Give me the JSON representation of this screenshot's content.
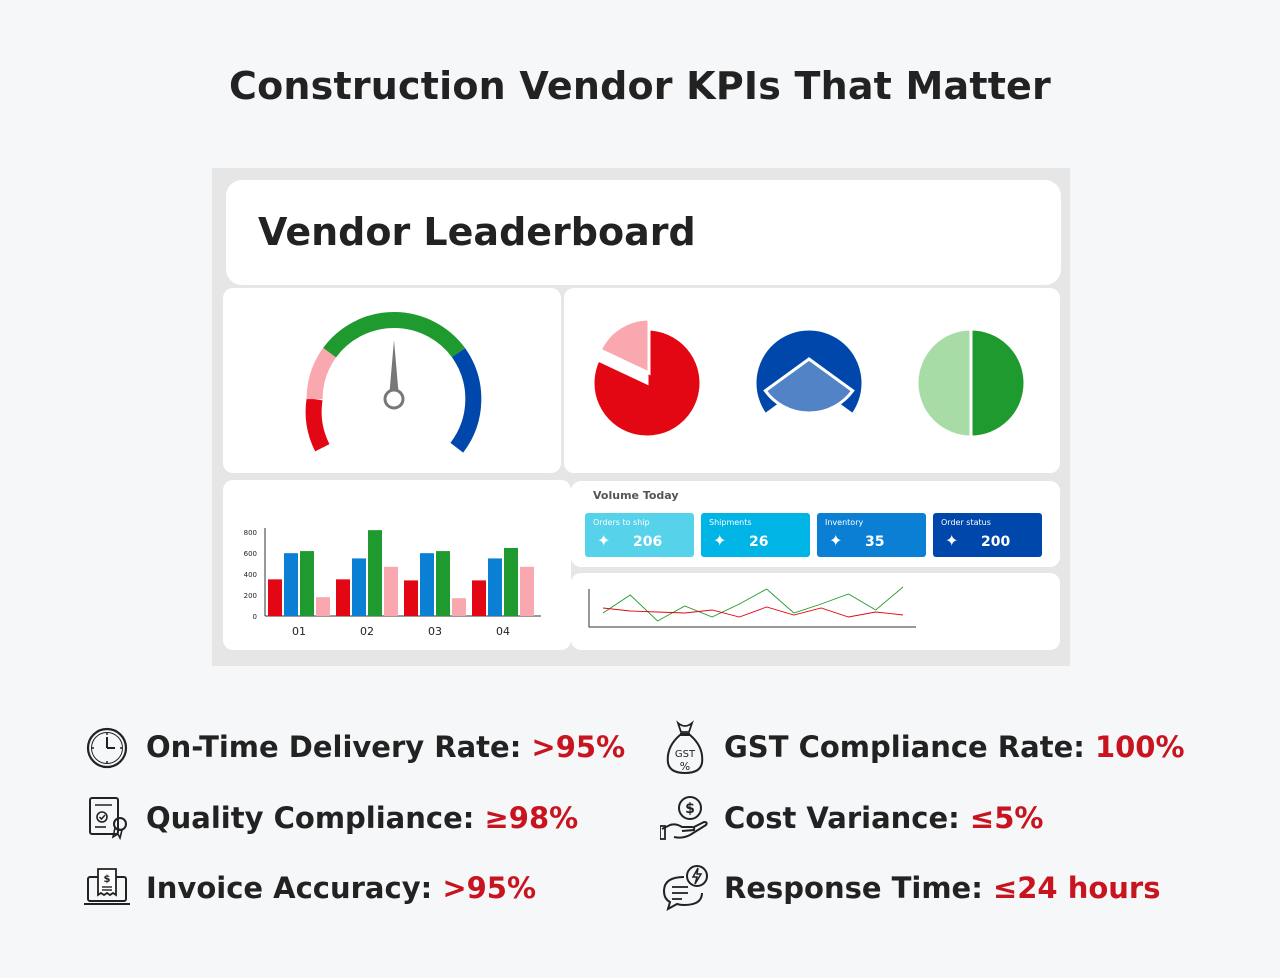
{
  "page": {
    "title": "Construction Vendor KPIs That Matter"
  },
  "dashboard": {
    "title": "Vendor Leaderboard",
    "gauge": {
      "level": 0.5
    },
    "pies": [
      {
        "name": "pie-red",
        "slices": [
          {
            "value": 0.82,
            "color": "#e30613"
          },
          {
            "value": 0.18,
            "color": "#f9a8b0"
          }
        ]
      },
      {
        "name": "pie-blue",
        "slices": [
          {
            "value": 0.7,
            "color": "#0047ab"
          },
          {
            "value": 0.3,
            "color": "#5283c7"
          }
        ]
      },
      {
        "name": "pie-green",
        "slices": [
          {
            "value": 0.5,
            "color": "#1f9a2e"
          },
          {
            "value": 0.5,
            "color": "#a8dca6"
          }
        ]
      }
    ],
    "volume": {
      "title": "Volume Today",
      "tiles": [
        {
          "label": "Orders to ship",
          "value": "206",
          "icon": "sparkle-icon",
          "color": "#56d3ea"
        },
        {
          "label": "Shipments",
          "value": "26",
          "icon": "sparkle-icon",
          "color": "#00b4e6"
        },
        {
          "label": "Inventory",
          "value": "35",
          "icon": "sparkle-icon",
          "color": "#0a7fd4"
        },
        {
          "label": "Order status",
          "value": "200",
          "icon": "sparkle-icon",
          "color": "#0047ab"
        }
      ]
    }
  },
  "chart_data": [
    {
      "type": "bar",
      "categories": [
        "01",
        "02",
        "03",
        "04"
      ],
      "yticks": [
        "0",
        "200",
        "400",
        "600",
        "800"
      ],
      "ylim": [
        0,
        850
      ],
      "series": [
        {
          "color": "#e30613",
          "values": [
            350,
            350,
            340,
            340
          ]
        },
        {
          "color": "#0a7fd4",
          "values": [
            600,
            550,
            600,
            550
          ]
        },
        {
          "color": "#1f9a2e",
          "values": [
            620,
            820,
            620,
            650
          ]
        },
        {
          "color": "#f9a8b0",
          "values": [
            180,
            470,
            170,
            470
          ]
        }
      ]
    },
    {
      "type": "line",
      "x": [
        0,
        1,
        2,
        3,
        4,
        5,
        6,
        7,
        8,
        9,
        10,
        11
      ],
      "series": [
        {
          "color": "#1f9a2e",
          "values": [
            10,
            28,
            2,
            17,
            6,
            19,
            34,
            10,
            19,
            29,
            13,
            36
          ]
        },
        {
          "color": "#e30613",
          "values": [
            15,
            12,
            11,
            10,
            13,
            6,
            16,
            8,
            15,
            6,
            11,
            8
          ]
        }
      ]
    }
  ],
  "kpis": [
    {
      "label": "On-Time Delivery Rate:",
      "value": ">95%",
      "icon": "clock-icon"
    },
    {
      "label": "Quality Compliance:",
      "value": "≥98%",
      "icon": "certificate-icon"
    },
    {
      "label": "Invoice Accuracy:",
      "value": ">95%",
      "icon": "invoice-icon"
    },
    {
      "label": "GST Compliance Rate:",
      "value": "100%",
      "icon": "gst-bag-icon"
    },
    {
      "label": "Cost Variance:",
      "value": "≤5%",
      "icon": "hand-coin-icon"
    },
    {
      "label": "Response Time:",
      "value": "≤24 hours",
      "icon": "chat-bolt-icon"
    }
  ],
  "colors": {
    "accent": "#c8141e",
    "gauge_red": "#e30613",
    "gauge_pink": "#f9a8b0",
    "gauge_green": "#1f9a2e",
    "gauge_blue": "#0047ab"
  }
}
